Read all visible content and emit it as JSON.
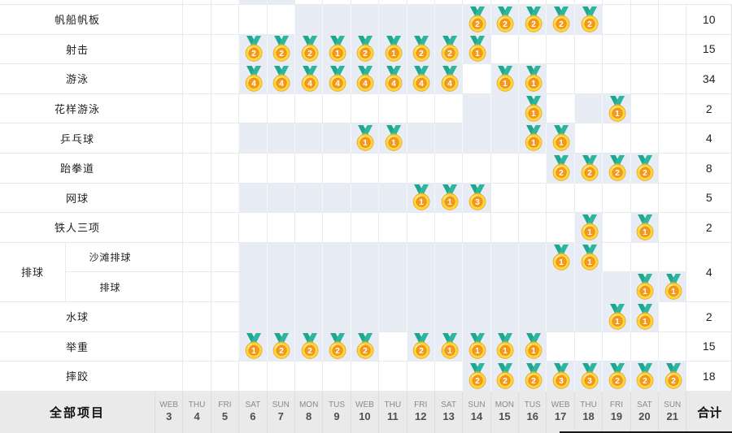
{
  "table": {
    "columns": [
      {
        "day": "WEB",
        "date": "3"
      },
      {
        "day": "THU",
        "date": "4"
      },
      {
        "day": "FRI",
        "date": "5"
      },
      {
        "day": "SAT",
        "date": "6"
      },
      {
        "day": "SUN",
        "date": "7"
      },
      {
        "day": "MON",
        "date": "8"
      },
      {
        "day": "TUS",
        "date": "9"
      },
      {
        "day": "WEB",
        "date": "10"
      },
      {
        "day": "THU",
        "date": "11"
      },
      {
        "day": "FRI",
        "date": "12"
      },
      {
        "day": "SAT",
        "date": "13"
      },
      {
        "day": "SUN",
        "date": "14"
      },
      {
        "day": "MON",
        "date": "15"
      },
      {
        "day": "TUS",
        "date": "16"
      },
      {
        "day": "WEB",
        "date": "17"
      },
      {
        "day": "THU",
        "date": "18"
      },
      {
        "day": "FRI",
        "date": "19"
      },
      {
        "day": "SAT",
        "date": "20"
      },
      {
        "day": "SUN",
        "date": "21"
      }
    ],
    "cropped_top_row_active": [
      0,
      0,
      0,
      1,
      1,
      0,
      0,
      0,
      0,
      0,
      0,
      0,
      0,
      0,
      0,
      0,
      0,
      0,
      0
    ],
    "rows": [
      {
        "label": "帆船帆板",
        "total": "10",
        "medals": [
          0,
          0,
          0,
          0,
          0,
          0,
          0,
          0,
          0,
          0,
          0,
          2,
          2,
          2,
          2,
          2,
          0,
          0,
          0
        ],
        "active": [
          0,
          0,
          0,
          0,
          0,
          1,
          1,
          1,
          1,
          1,
          1,
          1,
          1,
          1,
          1,
          1,
          0,
          0,
          0
        ]
      },
      {
        "label": "射击",
        "total": "15",
        "medals": [
          0,
          0,
          0,
          2,
          2,
          2,
          1,
          2,
          1,
          2,
          2,
          1,
          0,
          0,
          0,
          0,
          0,
          0,
          0
        ],
        "active": [
          0,
          0,
          0,
          1,
          1,
          1,
          1,
          1,
          1,
          1,
          1,
          1,
          0,
          0,
          0,
          0,
          0,
          0,
          0
        ]
      },
      {
        "label": "游泳",
        "total": "34",
        "medals": [
          0,
          0,
          0,
          4,
          4,
          4,
          4,
          4,
          4,
          4,
          4,
          0,
          1,
          1,
          0,
          0,
          0,
          0,
          0
        ],
        "active": [
          0,
          0,
          0,
          1,
          1,
          1,
          1,
          1,
          1,
          1,
          1,
          0,
          1,
          1,
          0,
          0,
          0,
          0,
          0
        ]
      },
      {
        "label": "花样游泳",
        "total": "2",
        "medals": [
          0,
          0,
          0,
          0,
          0,
          0,
          0,
          0,
          0,
          0,
          0,
          0,
          0,
          1,
          0,
          0,
          1,
          0,
          0
        ],
        "active": [
          0,
          0,
          0,
          0,
          0,
          0,
          0,
          0,
          0,
          0,
          0,
          1,
          1,
          1,
          0,
          1,
          1,
          0,
          0
        ]
      },
      {
        "label": "乒乓球",
        "total": "4",
        "medals": [
          0,
          0,
          0,
          0,
          0,
          0,
          0,
          1,
          1,
          0,
          0,
          0,
          0,
          1,
          1,
          0,
          0,
          0,
          0
        ],
        "active": [
          0,
          0,
          0,
          1,
          1,
          1,
          1,
          1,
          1,
          1,
          1,
          1,
          1,
          1,
          1,
          0,
          0,
          0,
          0
        ]
      },
      {
        "label": "跆拳道",
        "total": "8",
        "medals": [
          0,
          0,
          0,
          0,
          0,
          0,
          0,
          0,
          0,
          0,
          0,
          0,
          0,
          0,
          2,
          2,
          2,
          2,
          0
        ],
        "active": [
          0,
          0,
          0,
          0,
          0,
          0,
          0,
          0,
          0,
          0,
          0,
          0,
          0,
          0,
          1,
          1,
          1,
          1,
          0
        ]
      },
      {
        "label": "网球",
        "total": "5",
        "medals": [
          0,
          0,
          0,
          0,
          0,
          0,
          0,
          0,
          0,
          1,
          1,
          3,
          0,
          0,
          0,
          0,
          0,
          0,
          0
        ],
        "active": [
          0,
          0,
          0,
          1,
          1,
          1,
          1,
          1,
          1,
          1,
          1,
          1,
          0,
          0,
          0,
          0,
          0,
          0,
          0
        ]
      },
      {
        "label": "铁人三项",
        "total": "2",
        "medals": [
          0,
          0,
          0,
          0,
          0,
          0,
          0,
          0,
          0,
          0,
          0,
          0,
          0,
          0,
          0,
          1,
          0,
          1,
          0
        ],
        "active": [
          0,
          0,
          0,
          0,
          0,
          0,
          0,
          0,
          0,
          0,
          0,
          0,
          0,
          0,
          0,
          1,
          0,
          1,
          0
        ]
      },
      {
        "group": "排球",
        "label": "沙滩排球",
        "total": "4",
        "total_span": 2,
        "medals": [
          0,
          0,
          0,
          0,
          0,
          0,
          0,
          0,
          0,
          0,
          0,
          0,
          0,
          0,
          1,
          1,
          0,
          0,
          0
        ],
        "active": [
          0,
          0,
          0,
          1,
          1,
          1,
          1,
          1,
          1,
          1,
          1,
          1,
          1,
          1,
          1,
          1,
          0,
          0,
          0
        ]
      },
      {
        "label": "排球",
        "sub": true,
        "medals": [
          0,
          0,
          0,
          0,
          0,
          0,
          0,
          0,
          0,
          0,
          0,
          0,
          0,
          0,
          0,
          0,
          0,
          1,
          1
        ],
        "active": [
          0,
          0,
          0,
          1,
          1,
          1,
          1,
          1,
          1,
          1,
          1,
          1,
          1,
          1,
          1,
          1,
          1,
          1,
          1
        ]
      },
      {
        "label": "水球",
        "total": "2",
        "medals": [
          0,
          0,
          0,
          0,
          0,
          0,
          0,
          0,
          0,
          0,
          0,
          0,
          0,
          0,
          0,
          0,
          1,
          1,
          0
        ],
        "active": [
          0,
          0,
          0,
          1,
          1,
          1,
          1,
          1,
          1,
          1,
          1,
          1,
          1,
          1,
          1,
          1,
          1,
          1,
          0
        ]
      },
      {
        "label": "举重",
        "total": "15",
        "medals": [
          0,
          0,
          0,
          1,
          2,
          2,
          2,
          2,
          0,
          2,
          1,
          1,
          1,
          1,
          0,
          0,
          0,
          0,
          0
        ],
        "active": [
          0,
          0,
          0,
          1,
          1,
          1,
          1,
          1,
          0,
          1,
          1,
          1,
          1,
          1,
          0,
          0,
          0,
          0,
          0
        ]
      },
      {
        "label": "摔跤",
        "total": "18",
        "medals": [
          0,
          0,
          0,
          0,
          0,
          0,
          0,
          0,
          0,
          0,
          0,
          2,
          2,
          2,
          3,
          3,
          2,
          2,
          2
        ],
        "active": [
          0,
          0,
          0,
          0,
          0,
          0,
          0,
          0,
          0,
          0,
          0,
          1,
          1,
          1,
          1,
          1,
          1,
          1,
          1
        ]
      }
    ],
    "footer": {
      "all_events_label": "全部项目",
      "total_label": "合计"
    }
  },
  "icons": {
    "medal": "gold-medal-icon"
  },
  "colors": {
    "cell_shaded": "#e7ecf5",
    "grid_hline": "#e9e9e9",
    "grid_vline": "#e7eaf0",
    "grid_vline_on_shaded": "#f4f7fb",
    "footer_bg": "#eaeaea",
    "medal_gold": "#ffd53c",
    "medal_gold_edge": "#eaa41e",
    "medal_gold_highlight": "#fff3b0",
    "medal_inner": "#f5981e",
    "medal_inner_edge": "#e0820d",
    "ribbon_teal": "#2eb59e",
    "ribbon_teal_dark": "#1ea78e",
    "bottom_bar": "#1a1a1a"
  }
}
